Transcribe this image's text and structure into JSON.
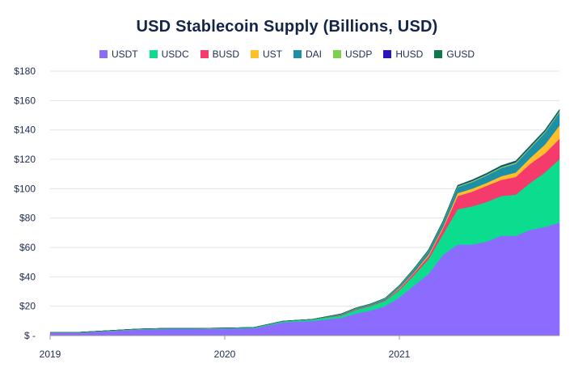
{
  "chart_data": {
    "type": "area",
    "stacked": true,
    "title": "USD Stablecoin Supply (Billions, USD)",
    "xlabel": "",
    "ylabel": "",
    "x_start": "2019-01",
    "x_end": "2021-12",
    "x": [
      "2019-01",
      "2019-03",
      "2019-05",
      "2019-07",
      "2019-09",
      "2019-11",
      "2020-01",
      "2020-03",
      "2020-05",
      "2020-07",
      "2020-09",
      "2020-10",
      "2020-11",
      "2020-12",
      "2021-01",
      "2021-02",
      "2021-03",
      "2021-04",
      "2021-05",
      "2021-06",
      "2021-07",
      "2021-08",
      "2021-09",
      "2021-10",
      "2021-11",
      "2021-12"
    ],
    "series": [
      {
        "name": "USDT",
        "color": "#8b6cff",
        "values": [
          2,
          2,
          3,
          4,
          4.5,
          4.5,
          4.7,
          5,
          9,
          10,
          12,
          15,
          17,
          20,
          26,
          34,
          42,
          55,
          62,
          62,
          64,
          68,
          68,
          72,
          74,
          77
        ]
      },
      {
        "name": "USDC",
        "color": "#0bdc8e",
        "values": [
          0.2,
          0.2,
          0.3,
          0.4,
          0.4,
          0.4,
          0.4,
          0.5,
          0.8,
          1,
          1.5,
          2.5,
          3,
          3.5,
          5,
          7,
          10,
          14,
          24,
          26,
          27,
          27,
          28,
          32,
          37,
          43
        ]
      },
      {
        "name": "BUSD",
        "color": "#f53b6b",
        "values": [
          0,
          0,
          0,
          0,
          0,
          0,
          0,
          0,
          0,
          0,
          0.5,
          0.5,
          0.5,
          0.5,
          1,
          1.5,
          2,
          4,
          9,
          10,
          11,
          11,
          12,
          13,
          13,
          14
        ]
      },
      {
        "name": "UST",
        "color": "#ffbf2b",
        "values": [
          0,
          0,
          0,
          0,
          0,
          0,
          0,
          0,
          0,
          0,
          0,
          0,
          0,
          0,
          0.5,
          0.5,
          1,
          1,
          2,
          2,
          2,
          2.5,
          3,
          4,
          6,
          9
        ]
      },
      {
        "name": "DAI",
        "color": "#1d8fa6",
        "values": [
          0.1,
          0.1,
          0.1,
          0.1,
          0.1,
          0.1,
          0.1,
          0.1,
          0.1,
          0.1,
          0.5,
          0.5,
          0.7,
          1,
          1.2,
          2,
          2.5,
          3,
          4,
          4.5,
          5,
          5.5,
          6,
          6.5,
          8,
          9
        ]
      },
      {
        "name": "USDP",
        "color": "#7ccf4f",
        "values": [
          0,
          0,
          0,
          0,
          0,
          0,
          0,
          0,
          0,
          0,
          0.2,
          0.2,
          0.2,
          0.3,
          0.3,
          0.4,
          0.5,
          0.6,
          0.7,
          0.8,
          0.8,
          0.9,
          1,
          1,
          1,
          1
        ]
      },
      {
        "name": "HUSD",
        "color": "#2a15b8",
        "values": [
          0,
          0,
          0,
          0,
          0,
          0,
          0,
          0,
          0,
          0,
          0.1,
          0.1,
          0.1,
          0.1,
          0.2,
          0.2,
          0.3,
          0.3,
          0.4,
          0.5,
          0.5,
          0.5,
          0.6,
          0.6,
          0.6,
          0.6
        ]
      },
      {
        "name": "GUSD",
        "color": "#0d7a4c",
        "values": [
          0,
          0,
          0,
          0,
          0,
          0,
          0,
          0,
          0,
          0,
          0.1,
          0.1,
          0.1,
          0.1,
          0.1,
          0.2,
          0.2,
          0.3,
          0.3,
          0.3,
          0.3,
          0.4,
          0.4,
          0.4,
          0.4,
          0.4
        ]
      }
    ],
    "ylim": [
      0,
      180
    ],
    "y_ticks": [
      0,
      20,
      40,
      60,
      80,
      100,
      120,
      140,
      160,
      180
    ],
    "y_tick_labels": [
      "$ -",
      "$20",
      "$40",
      "$60",
      "$80",
      "$100",
      "$120",
      "$140",
      "$160",
      "$180"
    ],
    "x_ticks": [
      "2019-01",
      "2020-01",
      "2021-01"
    ],
    "x_tick_labels": [
      "2019",
      "2020",
      "2021"
    ],
    "grid": "y-major",
    "legend_position": "top"
  }
}
